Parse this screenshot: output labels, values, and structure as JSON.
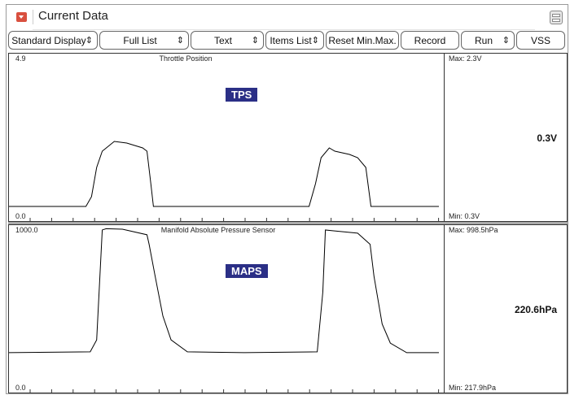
{
  "window": {
    "title": "Current Data",
    "menu_icon": "dropdown-icon",
    "list_icon": "list-view-icon"
  },
  "toolbar": [
    {
      "label": "Standard Display",
      "dropdown": true
    },
    {
      "label": "Full List",
      "dropdown": true
    },
    {
      "label": "Text",
      "dropdown": true
    },
    {
      "label": "Items List",
      "dropdown": true
    },
    {
      "label": "Reset Min.Max.",
      "dropdown": false
    },
    {
      "label": "Record",
      "dropdown": false
    },
    {
      "label": "Run",
      "dropdown": true
    },
    {
      "label": "VSS",
      "dropdown": false
    }
  ],
  "chart_data": [
    {
      "type": "line",
      "title": "Throttle Position",
      "badge": "TPS",
      "ymax_label": "4.9",
      "ymin_label": "0.0",
      "ylim": [
        0,
        4.9
      ],
      "max_label": "Max:  2.3V",
      "min_label": "Min:   0.3V",
      "current": "0.3V",
      "line_color": "#000000",
      "badge_color": "#2b2f86",
      "x": [
        0,
        17.9,
        19.2,
        20.4,
        21.7,
        24.5,
        27.4,
        31.1,
        32.1,
        33.0,
        33.6,
        69.8,
        71.3,
        72.6,
        74.5,
        75.8,
        79.2,
        81.1,
        83.0,
        84.2,
        100
      ],
      "y": [
        0.3,
        0.3,
        0.6,
        1.5,
        2.0,
        2.3,
        2.25,
        2.1,
        2.0,
        1.0,
        0.3,
        0.3,
        1.0,
        1.8,
        2.1,
        2.0,
        1.9,
        1.8,
        1.5,
        0.3,
        0.3
      ]
    },
    {
      "type": "line",
      "title": "Manifold Absolute Pressure Sensor",
      "badge": "MAPS",
      "ymax_label": "1000.0",
      "ymin_label": "0.0",
      "ylim": [
        0,
        1000
      ],
      "max_label": "Max: 998.5hPa",
      "min_label": "Min:  217.9hPa",
      "current": "220.6hPa",
      "line_color": "#000000",
      "badge_color": "#2b2f86",
      "x": [
        0,
        18.9,
        20.4,
        21.7,
        22.6,
        26.4,
        32.1,
        32.6,
        34.0,
        35.8,
        37.7,
        41.5,
        54.7,
        71.7,
        73.0,
        73.6,
        75.5,
        81.1,
        84.0,
        84.9,
        86.8,
        88.7,
        92.5,
        100
      ],
      "y": [
        220,
        225,
        300,
        990,
        998,
        995,
        960,
        900,
        700,
        450,
        300,
        225,
        220,
        225,
        600,
        990,
        985,
        970,
        900,
        700,
        400,
        280,
        220,
        220
      ]
    }
  ]
}
